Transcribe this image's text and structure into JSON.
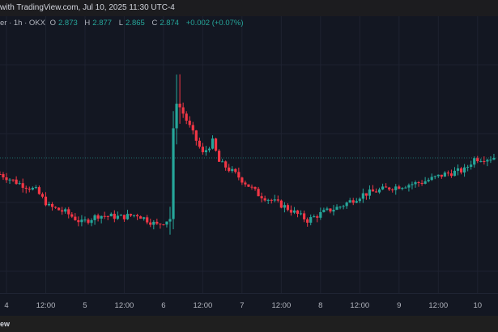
{
  "header": {
    "title": "with TradingView.com, Jul 10, 2025 11:30 UTC-4"
  },
  "legend": {
    "symbol": "er · 1h · OKX",
    "o_label": "O",
    "o": "2.873",
    "h_label": "H",
    "h": "2.877",
    "l_label": "L",
    "l": "2.865",
    "c_label": "C",
    "c": "2.874",
    "change": "+0.002 (+0.07%)"
  },
  "footer": {
    "text": "ew"
  },
  "colors": {
    "bg": "#131722",
    "up": "#26a69a",
    "down": "#f23645",
    "grid": "#1e2230"
  },
  "chart_data": {
    "type": "candlestick",
    "timeframe": "1h",
    "x_ticks": [
      {
        "hour": 0,
        "label": "4"
      },
      {
        "hour": 12,
        "label": "12:00"
      },
      {
        "hour": 24,
        "label": "5"
      },
      {
        "hour": 36,
        "label": "12:00"
      },
      {
        "hour": 48,
        "label": "6"
      },
      {
        "hour": 60,
        "label": "12:00"
      },
      {
        "hour": 72,
        "label": "7"
      },
      {
        "hour": 84,
        "label": "12:00"
      },
      {
        "hour": 96,
        "label": "8"
      },
      {
        "hour": 108,
        "label": "12:00"
      },
      {
        "hour": 120,
        "label": "9"
      },
      {
        "hour": 132,
        "label": "12:00"
      },
      {
        "hour": 144,
        "label": "10"
      }
    ],
    "last_price": 2.874,
    "close_keypoints": [
      [
        -2,
        2.854
      ],
      [
        3,
        2.844
      ],
      [
        9,
        2.834
      ],
      [
        13,
        2.814
      ],
      [
        18,
        2.807
      ],
      [
        23,
        2.794
      ],
      [
        28,
        2.803
      ],
      [
        35,
        2.801
      ],
      [
        40,
        2.804
      ],
      [
        46,
        2.791
      ],
      [
        50,
        2.799
      ],
      [
        50.5,
        2.889
      ],
      [
        52,
        2.944
      ],
      [
        54,
        2.929
      ],
      [
        57,
        2.904
      ],
      [
        60,
        2.879
      ],
      [
        63,
        2.894
      ],
      [
        65,
        2.869
      ],
      [
        70,
        2.854
      ],
      [
        77,
        2.829
      ],
      [
        85,
        2.814
      ],
      [
        92,
        2.797
      ],
      [
        97,
        2.807
      ],
      [
        102,
        2.814
      ],
      [
        109,
        2.829
      ],
      [
        117,
        2.837
      ],
      [
        127,
        2.844
      ],
      [
        134,
        2.854
      ],
      [
        140,
        2.859
      ],
      [
        143,
        2.873
      ],
      [
        149,
        2.874
      ]
    ]
  }
}
